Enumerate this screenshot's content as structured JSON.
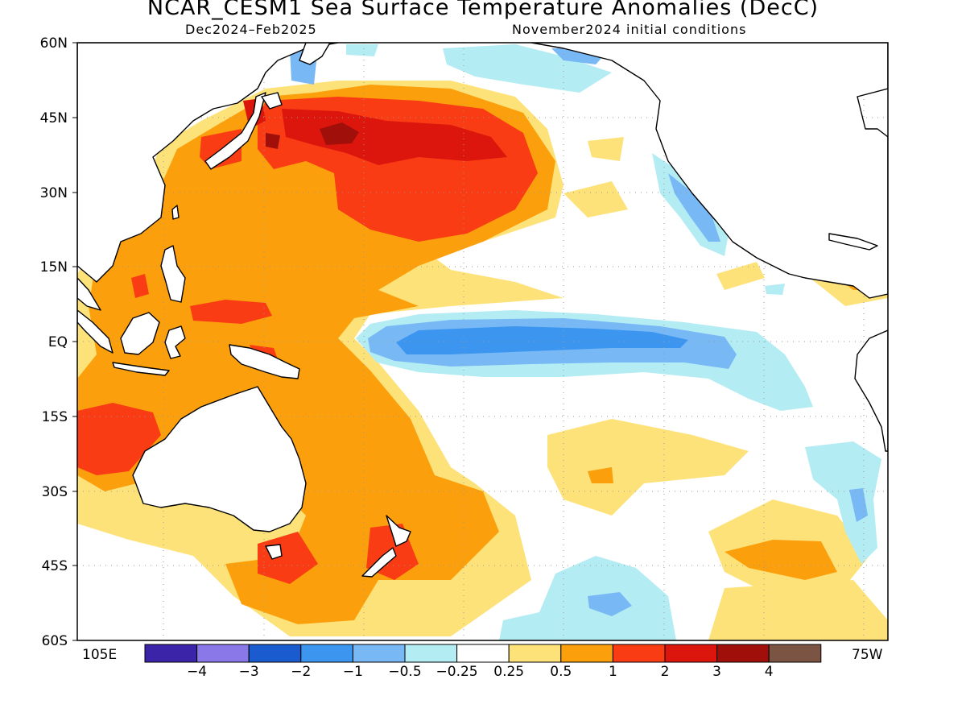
{
  "title": "NCAR_CESM1 Sea Surface Temperature Anomalies (DecC)",
  "period": "Dec2024–Feb2025",
  "initial_conditions": "November2024 initial conditions",
  "lat_labels": [
    "60N",
    "45N",
    "30N",
    "15N",
    "EQ",
    "15S",
    "30S",
    "45S",
    "60S"
  ],
  "lon_left": "105E",
  "lon_right": "75W",
  "colorbar": {
    "colors": [
      "#3c24a8",
      "#8a78e8",
      "#1a5cd0",
      "#3c96f0",
      "#78b9f5",
      "#b4ecf3",
      "#ffffff",
      "#fde27a",
      "#fba00c",
      "#fa3c14",
      "#dc160c",
      "#a00f0a",
      "#7c5444"
    ],
    "labels": [
      "−4",
      "−3",
      "−2",
      "−1",
      "−0.5",
      "−0.25",
      "0.25",
      "0.5",
      "1",
      "2",
      "3",
      "4"
    ]
  }
}
